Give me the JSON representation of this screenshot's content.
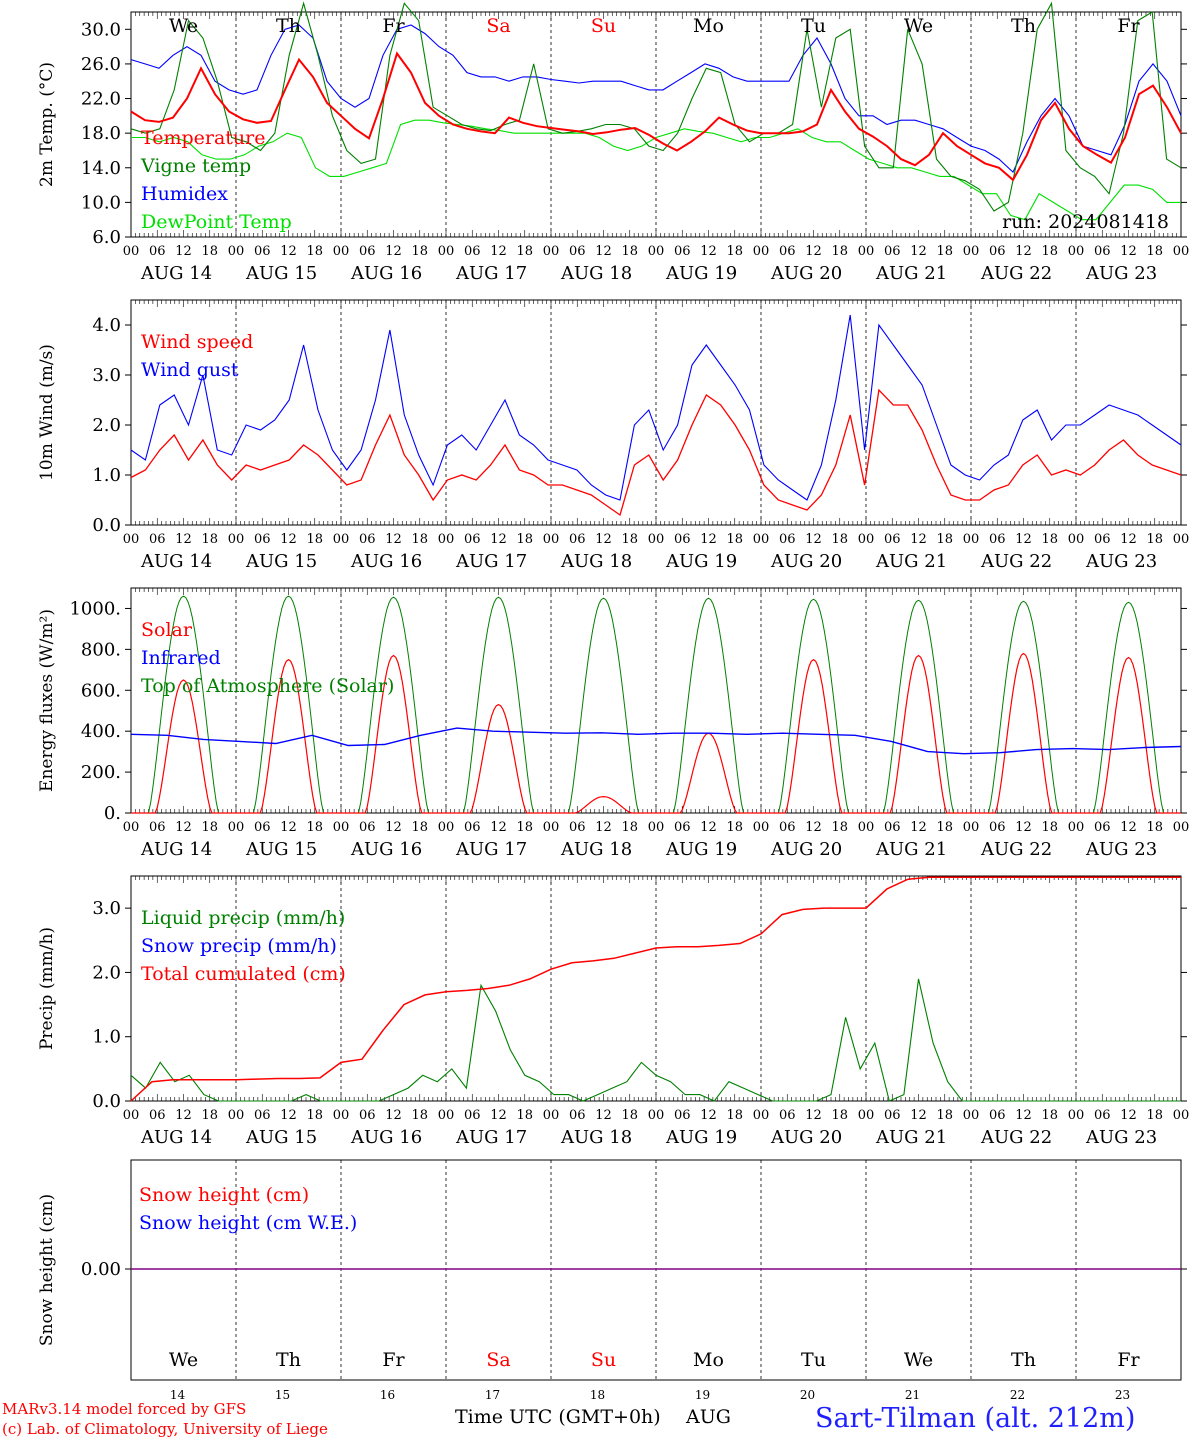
{
  "days": [
    {
      "dow": "We",
      "date": "AUG 14",
      "num": "14",
      "weekend": false
    },
    {
      "dow": "Th",
      "date": "AUG 15",
      "num": "15",
      "weekend": false
    },
    {
      "dow": "Fr",
      "date": "AUG 16",
      "num": "16",
      "weekend": false
    },
    {
      "dow": "Sa",
      "date": "AUG 17",
      "num": "17",
      "weekend": true
    },
    {
      "dow": "Su",
      "date": "AUG 18",
      "num": "18",
      "weekend": true
    },
    {
      "dow": "Mo",
      "date": "AUG 19",
      "num": "19",
      "weekend": false
    },
    {
      "dow": "Tu",
      "date": "AUG 20",
      "num": "20",
      "weekend": false
    },
    {
      "dow": "We",
      "date": "AUG 21",
      "num": "21",
      "weekend": false
    },
    {
      "dow": "Th",
      "date": "AUG 22",
      "num": "22",
      "weekend": false
    },
    {
      "dow": "Fr",
      "date": "AUG 23",
      "num": "23",
      "weekend": false
    }
  ],
  "hour_ticks": [
    "00",
    "06",
    "12",
    "18"
  ],
  "hour_end": "00",
  "colors": {
    "red": "#ff0000",
    "green": "#008000",
    "blue": "#0000ff",
    "lightgreen": "#00e000",
    "purple": "#800080",
    "weekend": "#ff0000",
    "text": "#000000"
  },
  "footer": {
    "xlabel": "Time UTC (GMT+0h)",
    "month": "AUG",
    "credit1": "MARv3.14 model forced by GFS",
    "credit2": "(c) Lab. of Climatology, University of Liege",
    "station": "Sart-Tilman (alt. 212m)"
  },
  "chart_data": [
    {
      "type": "line",
      "ylabel": "2m Temp. (°C)",
      "ylim": [
        6,
        32
      ],
      "yticks": [
        "30.0",
        "26.0",
        "22.0",
        "18.0",
        "14.0",
        "10.0",
        "6.0"
      ],
      "annotation": "run: 2024081418",
      "x": "hours from 00 UTC Aug 14, 3-hourly",
      "series": [
        {
          "name": "Temperature",
          "color": "#ff0000",
          "values": [
            20.5,
            19.5,
            19.3,
            19.8,
            22,
            25.5,
            22.5,
            20.5,
            19.6,
            19.2,
            19.4,
            23,
            26.5,
            24.5,
            21.5,
            20,
            18.5,
            17.4,
            22,
            27.2,
            25,
            21.5,
            20,
            19,
            18.5,
            18.2,
            18,
            19.8,
            19.2,
            18.8,
            18.6,
            18.4,
            18.2,
            17.9,
            18.1,
            18.4,
            18.6,
            17.8,
            16.8,
            16,
            17,
            18.2,
            19.8,
            19,
            18.3,
            18,
            18,
            18,
            18.2,
            19,
            23,
            20.5,
            18.5,
            17.6,
            16.5,
            15,
            14.3,
            15.5,
            18,
            16.5,
            15.5,
            14.5,
            14,
            12.6,
            15.5,
            19.5,
            21.5,
            18.5,
            16.5,
            15.5,
            14.6,
            17.5,
            22.5,
            23.5,
            21,
            18
          ]
        },
        {
          "name": "Vigne temp",
          "color": "#008000",
          "values": [
            18.5,
            18,
            18.5,
            23,
            31,
            29,
            24,
            17.5,
            17,
            16,
            18,
            27,
            33,
            27,
            20,
            16,
            14.5,
            15,
            27,
            33,
            31,
            21,
            20,
            19,
            18.5,
            18.3,
            19,
            19.5,
            26,
            18.5,
            18,
            18.2,
            18.5,
            19,
            19,
            18.5,
            16.5,
            16,
            18,
            22,
            25.5,
            25,
            19,
            17,
            18,
            18,
            19,
            30,
            21,
            29,
            30,
            16.5,
            14,
            14,
            30,
            26,
            15,
            13,
            12.5,
            11.5,
            9,
            10,
            18,
            30,
            33,
            16,
            14,
            13,
            11,
            18,
            31,
            32,
            15,
            14
          ]
        },
        {
          "name": "Humidex",
          "color": "#0000ff",
          "values": [
            26.5,
            26,
            25.5,
            27,
            28,
            27,
            24,
            23,
            22.5,
            23,
            27,
            30,
            30.5,
            29,
            24,
            22,
            21,
            22,
            27,
            30,
            30.5,
            29.5,
            28,
            27,
            25,
            24.5,
            24.5,
            24,
            24.5,
            24.5,
            24.2,
            24,
            23.8,
            24,
            24,
            24,
            23.5,
            23,
            23,
            24,
            25,
            26,
            25.5,
            24.5,
            24,
            24,
            24,
            24,
            27,
            29,
            26,
            22,
            20,
            20,
            19,
            19.5,
            19.5,
            19,
            18.5,
            17.5,
            16.5,
            16,
            15,
            13.5,
            17,
            20,
            22,
            20,
            16.5,
            16,
            15.5,
            19,
            24,
            26,
            24,
            20
          ]
        },
        {
          "name": "DewPoint Temp",
          "color": "#00e000",
          "values": [
            17.5,
            17.5,
            17,
            17.5,
            17,
            15.5,
            15,
            15,
            15.5,
            16.5,
            17,
            18,
            17.5,
            14,
            13,
            13,
            13.5,
            14,
            14.5,
            19,
            19.5,
            19.5,
            19.2,
            19,
            18.8,
            18.5,
            18.3,
            18,
            18,
            18,
            18,
            18,
            18,
            17.5,
            16.5,
            16,
            16.5,
            17.5,
            18,
            18.5,
            18.2,
            18,
            17.5,
            17,
            17.5,
            17.5,
            18,
            18.5,
            17.5,
            17,
            17,
            16,
            15,
            14.5,
            14,
            14,
            13.5,
            13,
            13,
            12,
            11,
            11,
            8.5,
            8,
            11,
            10,
            9,
            8,
            8,
            10,
            12,
            12,
            11.5,
            10,
            10
          ]
        }
      ]
    },
    {
      "type": "line",
      "ylabel": "10m Wind (m/s)",
      "ylim": [
        0,
        4.5
      ],
      "yticks": [
        "4.0",
        "3.0",
        "2.0",
        "1.0",
        "0.0"
      ],
      "series": [
        {
          "name": "Wind speed",
          "color": "#ff0000",
          "values": [
            0.95,
            1.1,
            1.5,
            1.8,
            1.3,
            1.7,
            1.2,
            0.9,
            1.2,
            1.1,
            1.2,
            1.3,
            1.6,
            1.4,
            1.1,
            0.8,
            0.9,
            1.6,
            2.2,
            1.4,
            1.0,
            0.5,
            0.9,
            1.0,
            0.9,
            1.2,
            1.6,
            1.1,
            1.0,
            0.8,
            0.8,
            0.7,
            0.6,
            0.4,
            0.2,
            1.2,
            1.4,
            0.9,
            1.3,
            2.0,
            2.6,
            2.4,
            2.0,
            1.5,
            0.8,
            0.5,
            0.4,
            0.3,
            0.6,
            1.2,
            2.2,
            0.8,
            2.7,
            2.4,
            2.4,
            1.9,
            1.2,
            0.6,
            0.5,
            0.5,
            0.7,
            0.8,
            1.2,
            1.4,
            1.0,
            1.1,
            1.0,
            1.2,
            1.5,
            1.7,
            1.4,
            1.2,
            1.1,
            1.0
          ]
        },
        {
          "name": "Wind gust",
          "color": "#0000ff",
          "values": [
            1.5,
            1.3,
            2.4,
            2.6,
            2.0,
            3.0,
            1.5,
            1.4,
            2.0,
            1.9,
            2.1,
            2.5,
            3.6,
            2.3,
            1.5,
            1.1,
            1.5,
            2.5,
            3.9,
            2.2,
            1.4,
            0.8,
            1.6,
            1.8,
            1.5,
            2.0,
            2.5,
            1.8,
            1.6,
            1.3,
            1.2,
            1.1,
            0.8,
            0.6,
            0.5,
            2.0,
            2.3,
            1.5,
            2.0,
            3.2,
            3.6,
            3.2,
            2.8,
            2.3,
            1.2,
            0.9,
            0.7,
            0.5,
            1.2,
            2.5,
            4.2,
            1.5,
            4.0,
            3.6,
            3.2,
            2.8,
            2.0,
            1.2,
            1.0,
            0.9,
            1.2,
            1.4,
            2.1,
            2.3,
            1.7,
            2.0,
            2.0,
            2.2,
            2.4,
            2.3,
            2.2,
            2.0,
            1.8,
            1.6
          ]
        }
      ]
    },
    {
      "type": "line",
      "ylabel": "Energy fluxes (W/m²)",
      "ylim": [
        0,
        1100
      ],
      "yticks": [
        "1000.",
        "800.",
        "600.",
        "400.",
        "200.",
        "0."
      ],
      "series": [
        {
          "name": "Solar",
          "color": "#ff0000",
          "peaks": [
            650,
            750,
            770,
            530,
            80,
            390,
            750,
            770,
            780,
            760
          ]
        },
        {
          "name": "Infrared",
          "color": "#0000ff",
          "values": [
            385,
            380,
            360,
            350,
            340,
            380,
            330,
            335,
            380,
            415,
            400,
            395,
            390,
            392,
            385,
            390,
            390,
            385,
            390,
            385,
            380,
            350,
            300,
            290,
            295,
            310,
            315,
            310,
            320,
            325
          ]
        },
        {
          "name": "Top of Atmosphere (Solar)",
          "color": "#008000",
          "peaks": [
            1060,
            1060,
            1055,
            1055,
            1050,
            1050,
            1045,
            1040,
            1035,
            1030
          ]
        }
      ]
    },
    {
      "type": "line",
      "ylabel": "Precip (mm/h)",
      "ylim": [
        0,
        3.5
      ],
      "yticks": [
        "3.0",
        "2.0",
        "1.0",
        "0.0"
      ],
      "series": [
        {
          "name": "Liquid precip (mm/h)",
          "color": "#008000",
          "values": [
            0.4,
            0.2,
            0.6,
            0.3,
            0.4,
            0.1,
            0,
            0,
            0,
            0,
            0,
            0,
            0.1,
            0,
            0,
            0,
            0,
            0,
            0.1,
            0.2,
            0.4,
            0.3,
            0.5,
            0.2,
            1.8,
            1.4,
            0.8,
            0.4,
            0.3,
            0.1,
            0.1,
            0,
            0.1,
            0.2,
            0.3,
            0.6,
            0.4,
            0.3,
            0.1,
            0.1,
            0,
            0.3,
            0.2,
            0.1,
            0,
            0,
            0,
            0,
            0.1,
            1.3,
            0.5,
            0.9,
            0,
            0.1,
            1.9,
            0.9,
            0.3,
            0,
            0,
            0,
            0,
            0,
            0,
            0,
            0,
            0,
            0,
            0,
            0,
            0,
            0,
            0,
            0
          ]
        },
        {
          "name": "Snow precip (mm/h)",
          "color": "#0000ff",
          "values": []
        },
        {
          "name": "Total cumulated (cm)",
          "color": "#ff0000",
          "values": [
            0,
            0.3,
            0.33,
            0.33,
            0.33,
            0.33,
            0.34,
            0.35,
            0.35,
            0.36,
            0.6,
            0.65,
            1.1,
            1.5,
            1.65,
            1.7,
            1.72,
            1.75,
            1.8,
            1.9,
            2.05,
            2.15,
            2.18,
            2.22,
            2.3,
            2.38,
            2.4,
            2.4,
            2.42,
            2.45,
            2.6,
            2.9,
            2.98,
            3.0,
            3.0,
            3.0,
            3.3,
            3.45,
            3.48,
            3.48,
            3.48,
            3.48,
            3.48,
            3.48,
            3.48,
            3.48,
            3.48,
            3.48,
            3.48,
            3.48,
            3.48
          ]
        }
      ]
    },
    {
      "type": "line",
      "ylabel": "Snow height (cm)",
      "yticks": [
        "0.00"
      ],
      "series": [
        {
          "name": "Snow height (cm)",
          "color": "#ff0000",
          "values": [
            0
          ]
        },
        {
          "name": "Snow height (cm W.E.)",
          "color": "#0000ff",
          "values": [
            0
          ]
        }
      ]
    }
  ]
}
